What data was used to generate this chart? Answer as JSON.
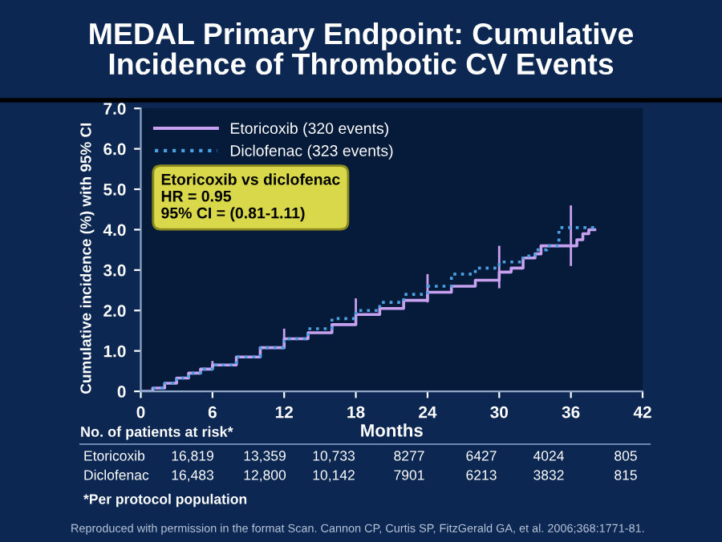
{
  "chart_data": {
    "type": "step",
    "title": "MEDAL Primary Endpoint: Cumulative\nIncidence of Thrombotic CV Events",
    "xlabel": "Months",
    "ylabel": "Cumulative incidence (%) with 95% CI",
    "xlim": [
      0,
      42
    ],
    "xticks": [
      0,
      6,
      12,
      18,
      24,
      30,
      36,
      42
    ],
    "ylim": [
      0,
      7
    ],
    "yticks": [
      {
        "value": 0,
        "label": "0"
      },
      {
        "value": 1,
        "label": "1.0"
      },
      {
        "value": 2,
        "label": "2.0"
      },
      {
        "value": 3,
        "label": "3.0"
      },
      {
        "value": 4,
        "label": "4.0"
      },
      {
        "value": 5,
        "label": "5.0"
      },
      {
        "value": 6,
        "label": "6.0"
      },
      {
        "value": 7,
        "label": "7.0"
      }
    ],
    "grid": false,
    "legend": "top left",
    "marker": "none",
    "series": [
      {
        "name": "Etoricoxib (320 events)",
        "color": "#c8a2f0",
        "line_style": "solid",
        "x": [
          0,
          1,
          2,
          3,
          4,
          5,
          6,
          8,
          10,
          12,
          14,
          16,
          18,
          20,
          22,
          24,
          26,
          28,
          30,
          31,
          32,
          33,
          33.5,
          36,
          36.5,
          37,
          37.5,
          38
        ],
        "values": [
          0,
          0.08,
          0.2,
          0.33,
          0.45,
          0.55,
          0.65,
          0.85,
          1.08,
          1.3,
          1.45,
          1.65,
          1.9,
          2.05,
          2.25,
          2.45,
          2.6,
          2.75,
          2.95,
          3.05,
          3.3,
          3.4,
          3.6,
          3.6,
          3.75,
          3.9,
          4.0,
          4.0
        ],
        "errors": [
          null,
          null,
          null,
          null,
          null,
          null,
          [
            0.55,
            0.75
          ],
          null,
          null,
          [
            1.1,
            1.55
          ],
          null,
          null,
          [
            1.65,
            2.3
          ],
          null,
          null,
          [
            2.2,
            2.9
          ],
          null,
          null,
          [
            2.55,
            3.6
          ],
          null,
          null,
          null,
          null,
          [
            3.1,
            4.6
          ],
          null,
          null,
          null,
          null
        ]
      },
      {
        "name": "Diclofenac (323 events)",
        "color": "#4aa0e0",
        "line_style": "dotted",
        "x": [
          0,
          1,
          2,
          3,
          4,
          5,
          6,
          8,
          10,
          12,
          14,
          16,
          18,
          20,
          22,
          24,
          26,
          28,
          30,
          32,
          33,
          34,
          35,
          38
        ],
        "values": [
          0,
          0.08,
          0.2,
          0.33,
          0.45,
          0.55,
          0.65,
          0.85,
          1.08,
          1.3,
          1.55,
          1.8,
          2.0,
          2.2,
          2.4,
          2.6,
          2.9,
          3.05,
          3.2,
          3.35,
          3.5,
          3.6,
          4.05,
          4.05
        ]
      }
    ],
    "annotations": [
      "Etoricoxib vs diclofenac\nHR = 0.95\n95% CI = (0.81-1.11)",
      "No. of patients at risk*",
      "Etoricoxib",
      "16,819",
      "13,359",
      "10,733",
      "8277",
      "6427",
      "4024",
      "805",
      "Diclofenac",
      "16,483",
      "12,800",
      "10,142",
      "7901",
      "6213",
      "3832",
      "815",
      "*Per protocol population",
      "Reproduced with permission in the format Scan. Cannon CP, Curtis SP, FitzGerald GA, et al. 2006;368:1771-81."
    ]
  }
}
